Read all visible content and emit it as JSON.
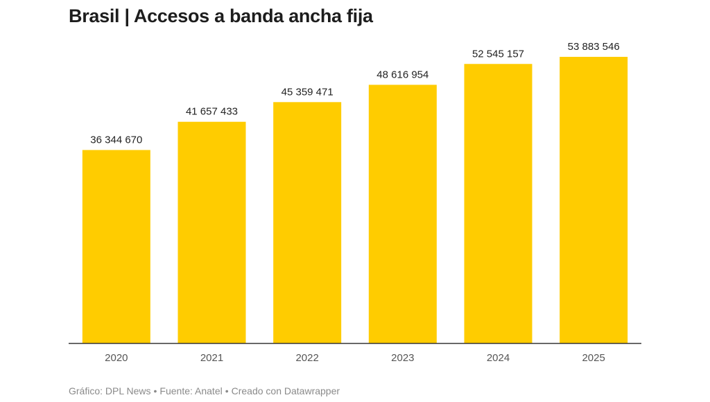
{
  "title": "Brasil | Accesos a banda ancha fija",
  "footer": {
    "chart_credit": "Gráfico: DPL News",
    "source": "Fuente: Anatel",
    "tool": "Creado con Datawrapper"
  },
  "colors": {
    "bar": "#FFCC00",
    "baseline": "#333333",
    "label": "#222222",
    "tick": "#555555"
  },
  "chart_data": {
    "type": "bar",
    "title": "Brasil | Accesos a banda ancha fija",
    "xlabel": "",
    "ylabel": "",
    "categories": [
      "2020",
      "2021",
      "2022",
      "2023",
      "2024",
      "2025"
    ],
    "values": [
      36344670,
      41657433,
      45359471,
      48616954,
      52545157,
      53883546
    ],
    "value_labels": [
      "36 344 670",
      "41 657 433",
      "45 359 471",
      "48 616 954",
      "52 545 157",
      "53 883 546"
    ],
    "ylim": [
      0,
      53883546
    ],
    "grid": false,
    "legend": "none"
  }
}
